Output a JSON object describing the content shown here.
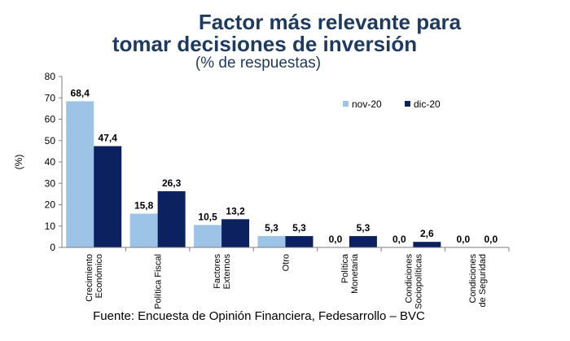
{
  "chart_data": {
    "type": "bar",
    "title_line1": "Factor más relevante para",
    "title_line2": "tomar decisiones de inversión",
    "subtitle": "(% de respuestas)",
    "ylabel": "(%)",
    "ylim": [
      0,
      80
    ],
    "yticks": [
      0,
      10,
      20,
      30,
      40,
      50,
      60,
      70,
      80
    ],
    "categories": [
      [
        "Crecimiento",
        "Económico"
      ],
      [
        "Política Fiscal"
      ],
      [
        "Factores",
        "Externos"
      ],
      [
        "Otro"
      ],
      [
        "Política",
        "Monetaria"
      ],
      [
        "Condiciones",
        "Sociopolíticas"
      ],
      [
        "Condiciones",
        "de Seguridad"
      ]
    ],
    "series": [
      {
        "name": "nov-20",
        "color": "#9dc3e6",
        "values": [
          68.4,
          15.8,
          10.5,
          5.3,
          0.0,
          0.0,
          0.0
        ],
        "labels": [
          "68,4",
          "15,8",
          "10,5",
          "5,3",
          "0,0",
          "0,0",
          "0,0"
        ]
      },
      {
        "name": "dic-20",
        "color": "#0b2160",
        "values": [
          47.4,
          26.3,
          13.2,
          5.3,
          5.3,
          2.6,
          0.0
        ],
        "labels": [
          "47,4",
          "26,3",
          "13,2",
          "5,3",
          "5,3",
          "2,6",
          "0,0"
        ]
      }
    ],
    "legend_position": "top-right",
    "grid": false
  },
  "source": "Fuente: Encuesta de Opinión Financiera, Fedesarrollo – BVC"
}
